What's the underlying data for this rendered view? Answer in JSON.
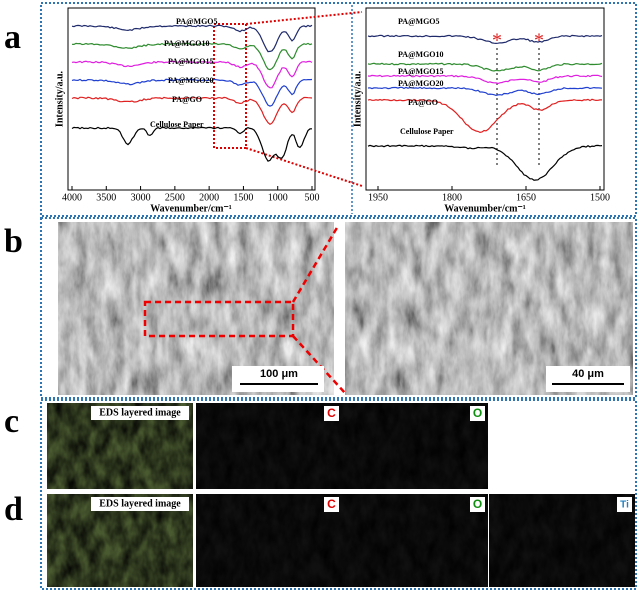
{
  "panels": {
    "a": {
      "label": "a",
      "left": {
        "y_label": "Intensity/a.u.",
        "x_label": "Wavenumber/cm⁻¹",
        "xticks": [
          "4000",
          "3500",
          "3000",
          "2500",
          "2000",
          "1500",
          "1000",
          "500"
        ],
        "series": [
          "PA@MGO5",
          "PA@MGO10",
          "PA@MGO15",
          "PA@MGO20",
          "PA@GO",
          "Cellulose Paper"
        ]
      },
      "right": {
        "y_label": "Intensity/a.u.",
        "x_label": "Wavenumber/cm⁻¹",
        "xticks": [
          "1950",
          "1800",
          "1650",
          "1500"
        ],
        "series": [
          "PA@MGO5",
          "PA@MGO10",
          "PA@MGO15",
          "PA@MGO20",
          "PA@GO",
          "Cellulose Paper"
        ],
        "markers": [
          "*",
          "*"
        ]
      }
    },
    "b": {
      "label": "b",
      "scale_bars": [
        "100 μm",
        "40 μm"
      ]
    },
    "c": {
      "label": "c",
      "tiles": [
        "EDS layered image",
        "C",
        "O"
      ]
    },
    "d": {
      "label": "d",
      "tiles": [
        "EDS layered image",
        "C",
        "O",
        "Ti"
      ]
    }
  }
}
